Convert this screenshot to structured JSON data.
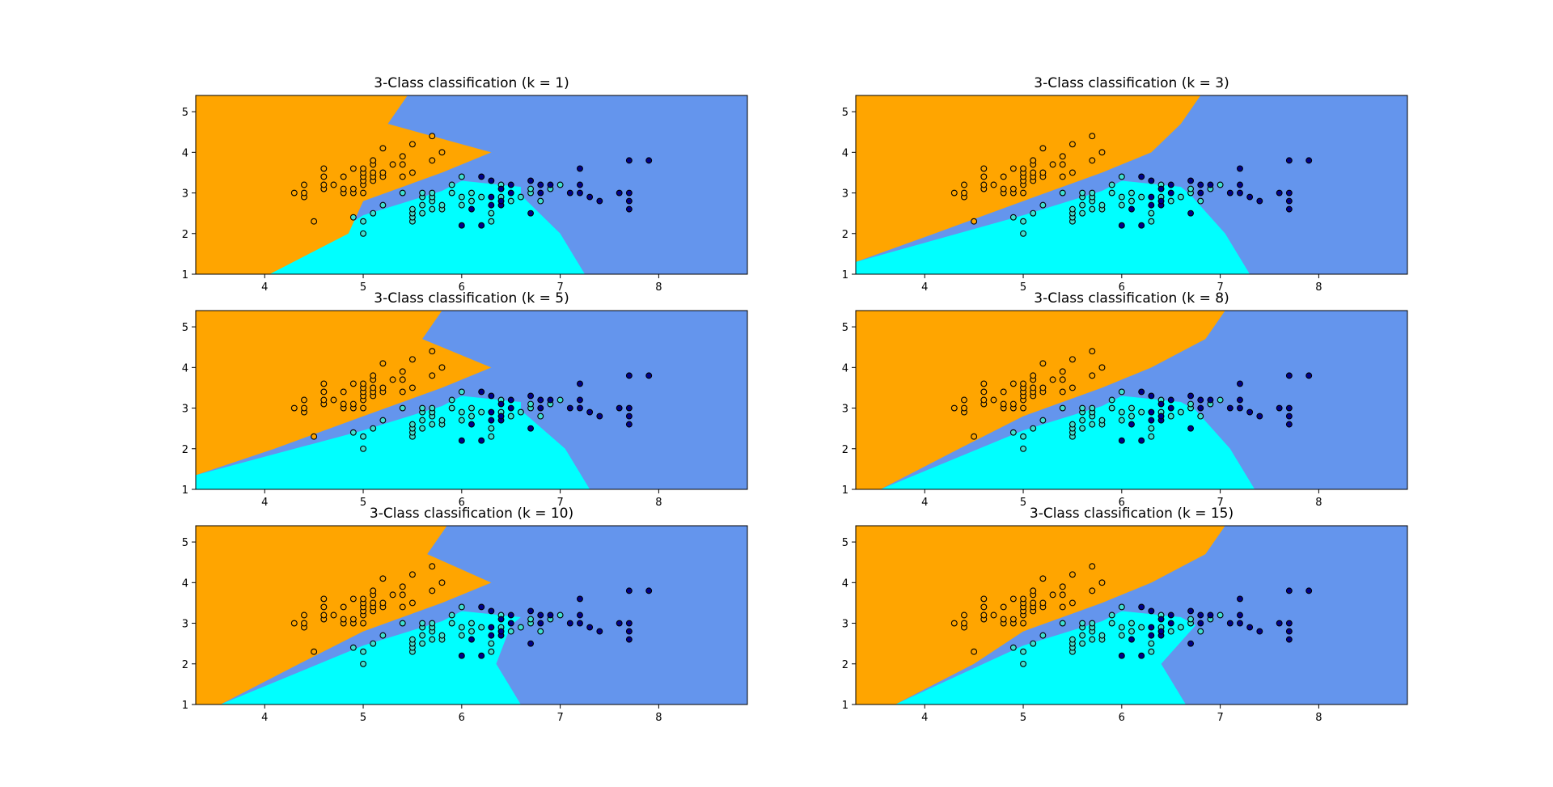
{
  "figure": {
    "description_layout": "3 rows x 2 columns of kNN decision-boundary plots"
  },
  "colors": {
    "class_0_region": "#FFA500",
    "class_1_region": "#00FFFF",
    "class_2_region": "#6495ED",
    "class_0_point": "#FFA500",
    "class_1_point": "#40E0D0",
    "class_2_point": "#00008B",
    "point_edge": "#000000"
  },
  "chart_data": [
    {
      "type": "scatter",
      "title": "3-Class classification (k = 1)",
      "xlabel": "",
      "ylabel": "",
      "xlim": [
        3.3,
        8.9
      ],
      "ylim": [
        1.0,
        5.4
      ],
      "xticks": [
        "4",
        "5",
        "6",
        "7",
        "8"
      ],
      "yticks": [
        "1",
        "2",
        "3",
        "4",
        "5"
      ],
      "boundary": {
        "ob_top": [
          5.45,
          5.4
        ],
        "ob_bottom": [
          4.05,
          1.0
        ],
        "cb_bottom": 7.25,
        "cb_top": 6.6
      }
    },
    {
      "type": "scatter",
      "title": "3-Class classification (k = 3)",
      "xlabel": "",
      "ylabel": "",
      "xlim": [
        3.3,
        8.9
      ],
      "ylim": [
        1.0,
        5.4
      ],
      "xticks": [
        "4",
        "5",
        "6",
        "7",
        "8"
      ],
      "yticks": [
        "1",
        "2",
        "3",
        "4",
        "5"
      ],
      "boundary": {
        "ob_top": [
          6.8,
          5.4
        ],
        "ob_bottom": [
          3.3,
          1.3
        ],
        "cb_bottom": 7.3,
        "cb_top": 6.7
      }
    },
    {
      "type": "scatter",
      "title": "3-Class classification (k = 5)",
      "xlabel": "",
      "ylabel": "",
      "xlim": [
        3.3,
        8.9
      ],
      "ylim": [
        1.0,
        5.4
      ],
      "xticks": [
        "4",
        "5",
        "6",
        "7",
        "8"
      ],
      "yticks": [
        "1",
        "2",
        "3",
        "4",
        "5"
      ],
      "boundary": {
        "ob_top": [
          5.8,
          5.4
        ],
        "ob_bottom": [
          3.3,
          1.35
        ],
        "cb_bottom": 7.3,
        "cb_top": 6.6
      }
    },
    {
      "type": "scatter",
      "title": "3-Class classification (k = 8)",
      "xlabel": "",
      "ylabel": "",
      "xlim": [
        3.3,
        8.9
      ],
      "ylim": [
        1.0,
        5.4
      ],
      "xticks": [
        "4",
        "5",
        "6",
        "7",
        "8"
      ],
      "yticks": [
        "1",
        "2",
        "3",
        "4",
        "5"
      ],
      "boundary": {
        "ob_top": [
          7.05,
          5.4
        ],
        "ob_bottom": [
          3.55,
          1.0
        ],
        "cb_bottom": 7.35,
        "cb_top": 6.75
      }
    },
    {
      "type": "scatter",
      "title": "3-Class classification (k = 10)",
      "xlabel": "",
      "ylabel": "",
      "xlim": [
        3.3,
        8.9
      ],
      "ylim": [
        1.0,
        5.4
      ],
      "xticks": [
        "4",
        "5",
        "6",
        "7",
        "8"
      ],
      "yticks": [
        "1",
        "2",
        "3",
        "4",
        "5"
      ],
      "boundary": {
        "ob_top": [
          5.85,
          5.4
        ],
        "ob_bottom": [
          3.55,
          1.0
        ],
        "cb_bottom": 6.6,
        "cb_top": 6.5
      }
    },
    {
      "type": "scatter",
      "title": "3-Class classification (k = 15)",
      "xlabel": "",
      "ylabel": "",
      "xlim": [
        3.3,
        8.9
      ],
      "ylim": [
        1.0,
        5.4
      ],
      "xticks": [
        "4",
        "5",
        "6",
        "7",
        "8"
      ],
      "yticks": [
        "1",
        "2",
        "3",
        "4",
        "5"
      ],
      "boundary": {
        "ob_top": [
          7.05,
          5.4
        ],
        "ob_bottom": [
          3.7,
          1.0
        ],
        "cb_bottom": 6.65,
        "cb_top": 6.75
      }
    }
  ],
  "points": {
    "class_0": [
      [
        4.3,
        3.0
      ],
      [
        4.4,
        2.9
      ],
      [
        4.4,
        3.0
      ],
      [
        4.4,
        3.2
      ],
      [
        4.5,
        2.3
      ],
      [
        4.6,
        3.1
      ],
      [
        4.6,
        3.2
      ],
      [
        4.6,
        3.4
      ],
      [
        4.6,
        3.6
      ],
      [
        4.7,
        3.2
      ],
      [
        4.8,
        3.0
      ],
      [
        4.8,
        3.1
      ],
      [
        4.8,
        3.4
      ],
      [
        4.9,
        3.0
      ],
      [
        4.9,
        3.1
      ],
      [
        4.9,
        3.6
      ],
      [
        5.0,
        3.0
      ],
      [
        5.0,
        3.2
      ],
      [
        5.0,
        3.3
      ],
      [
        5.0,
        3.4
      ],
      [
        5.0,
        3.5
      ],
      [
        5.0,
        3.6
      ],
      [
        5.1,
        3.3
      ],
      [
        5.1,
        3.4
      ],
      [
        5.1,
        3.5
      ],
      [
        5.1,
        3.7
      ],
      [
        5.1,
        3.8
      ],
      [
        5.2,
        3.4
      ],
      [
        5.2,
        3.5
      ],
      [
        5.2,
        4.1
      ],
      [
        5.3,
        3.7
      ],
      [
        5.4,
        3.4
      ],
      [
        5.4,
        3.7
      ],
      [
        5.4,
        3.9
      ],
      [
        5.5,
        3.5
      ],
      [
        5.5,
        4.2
      ],
      [
        5.7,
        3.8
      ],
      [
        5.7,
        4.4
      ],
      [
        5.8,
        4.0
      ]
    ],
    "class_1": [
      [
        4.9,
        2.4
      ],
      [
        5.0,
        2.0
      ],
      [
        5.0,
        2.3
      ],
      [
        5.1,
        2.5
      ],
      [
        5.2,
        2.7
      ],
      [
        5.4,
        3.0
      ],
      [
        5.5,
        2.3
      ],
      [
        5.5,
        2.4
      ],
      [
        5.5,
        2.5
      ],
      [
        5.5,
        2.6
      ],
      [
        5.6,
        2.5
      ],
      [
        5.6,
        2.7
      ],
      [
        5.6,
        2.9
      ],
      [
        5.6,
        3.0
      ],
      [
        5.7,
        2.6
      ],
      [
        5.7,
        2.8
      ],
      [
        5.7,
        2.9
      ],
      [
        5.7,
        3.0
      ],
      [
        5.8,
        2.6
      ],
      [
        5.8,
        2.7
      ],
      [
        5.9,
        3.0
      ],
      [
        5.9,
        3.2
      ],
      [
        6.0,
        2.7
      ],
      [
        6.0,
        2.9
      ],
      [
        6.0,
        3.4
      ],
      [
        6.1,
        2.8
      ],
      [
        6.1,
        3.0
      ],
      [
        6.2,
        2.9
      ],
      [
        6.3,
        2.3
      ],
      [
        6.3,
        2.5
      ],
      [
        6.4,
        2.9
      ],
      [
        6.4,
        3.2
      ],
      [
        6.5,
        2.8
      ],
      [
        6.6,
        2.9
      ],
      [
        6.7,
        3.0
      ],
      [
        6.7,
        3.1
      ],
      [
        6.8,
        2.8
      ],
      [
        6.9,
        3.1
      ],
      [
        7.0,
        3.2
      ]
    ],
    "class_2": [
      [
        6.0,
        2.2
      ],
      [
        6.1,
        2.6
      ],
      [
        6.2,
        2.2
      ],
      [
        6.2,
        3.4
      ],
      [
        6.3,
        2.7
      ],
      [
        6.3,
        2.9
      ],
      [
        6.3,
        3.3
      ],
      [
        6.4,
        2.7
      ],
      [
        6.4,
        2.8
      ],
      [
        6.4,
        3.1
      ],
      [
        6.5,
        3.0
      ],
      [
        6.5,
        3.2
      ],
      [
        6.7,
        2.5
      ],
      [
        6.7,
        3.3
      ],
      [
        6.8,
        3.0
      ],
      [
        6.8,
        3.2
      ],
      [
        6.9,
        3.2
      ],
      [
        7.1,
        3.0
      ],
      [
        7.2,
        3.0
      ],
      [
        7.2,
        3.2
      ],
      [
        7.2,
        3.6
      ],
      [
        7.3,
        2.9
      ],
      [
        7.4,
        2.8
      ],
      [
        7.6,
        3.0
      ],
      [
        7.7,
        2.6
      ],
      [
        7.7,
        2.8
      ],
      [
        7.7,
        3.0
      ],
      [
        7.7,
        3.8
      ],
      [
        7.9,
        3.8
      ]
    ]
  }
}
